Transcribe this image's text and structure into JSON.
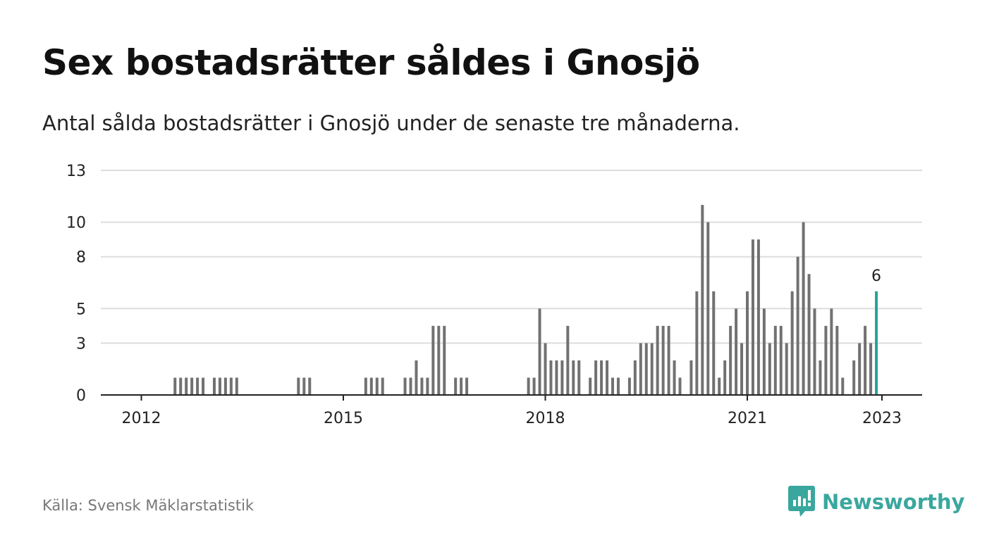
{
  "title": "Sex bostadsrätter såldes i Gnosjö",
  "subtitle": "Antal sålda bostadsrätter i Gnosjö under de senaste tre månaderna.",
  "source": "Källa: Svensk Mäklarstatistik",
  "brand": {
    "name": "Newsworthy",
    "color": "#3aa79e"
  },
  "colors": {
    "bar": "#717171",
    "highlight": "#2aa198",
    "grid": "#dddddd",
    "axis": "#222222"
  },
  "chart_data": {
    "type": "bar",
    "x_start": "2011-07",
    "x_unit": "month",
    "ylim": [
      0,
      13
    ],
    "yticks": [
      0,
      3,
      5,
      8,
      10,
      13
    ],
    "xticks": [
      {
        "label": "2012",
        "month_index": 6
      },
      {
        "label": "2015",
        "month_index": 42
      },
      {
        "label": "2018",
        "month_index": 78
      },
      {
        "label": "2021",
        "month_index": 114
      },
      {
        "label": "2023",
        "month_index": 138
      }
    ],
    "values": [
      0,
      0,
      0,
      0,
      0,
      0,
      0,
      0,
      0,
      0,
      0,
      0,
      1,
      1,
      1,
      1,
      1,
      1,
      0,
      1,
      1,
      1,
      1,
      1,
      0,
      0,
      0,
      0,
      0,
      0,
      0,
      0,
      0,
      0,
      1,
      1,
      1,
      0,
      0,
      0,
      0,
      0,
      0,
      0,
      0,
      0,
      1,
      1,
      1,
      1,
      0,
      0,
      0,
      1,
      1,
      2,
      1,
      1,
      4,
      4,
      4,
      0,
      1,
      1,
      1,
      0,
      0,
      0,
      0,
      0,
      0,
      0,
      0,
      0,
      0,
      1,
      1,
      5,
      3,
      2,
      2,
      2,
      4,
      2,
      2,
      0,
      1,
      2,
      2,
      2,
      1,
      1,
      0,
      1,
      2,
      3,
      3,
      3,
      4,
      4,
      4,
      2,
      1,
      0,
      2,
      6,
      11,
      10,
      6,
      1,
      2,
      4,
      5,
      3,
      6,
      9,
      9,
      5,
      3,
      4,
      4,
      3,
      6,
      8,
      10,
      7,
      5,
      2,
      4,
      5,
      4,
      1,
      0,
      2,
      3,
      4,
      3,
      6
    ],
    "highlight_last": true,
    "highlight_label": "6"
  }
}
